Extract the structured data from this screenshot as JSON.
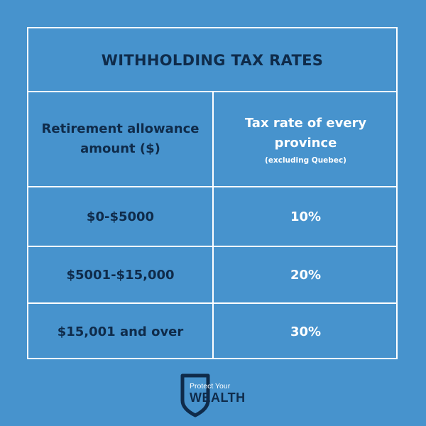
{
  "colors": {
    "background": "#4793CD",
    "dark_text": "#0F2B4A",
    "light_text": "#FFFFFF",
    "border": "#FFFFFF"
  },
  "table": {
    "title": "WITHHOLDING TAX RATES",
    "header": {
      "left": "Retirement allowance amount ($)",
      "right_main": "Tax rate of every province",
      "right_sub": "(excluding Quebec)"
    },
    "rows": [
      {
        "amount": "$0-$5000",
        "rate": "10%"
      },
      {
        "amount": "$5001-$15,000",
        "rate": "20%"
      },
      {
        "amount": "$15,001 and over",
        "rate": "30%"
      }
    ]
  },
  "logo": {
    "icon": "shield-icon",
    "line1": "Protect Your",
    "line2": "WEALTH"
  }
}
